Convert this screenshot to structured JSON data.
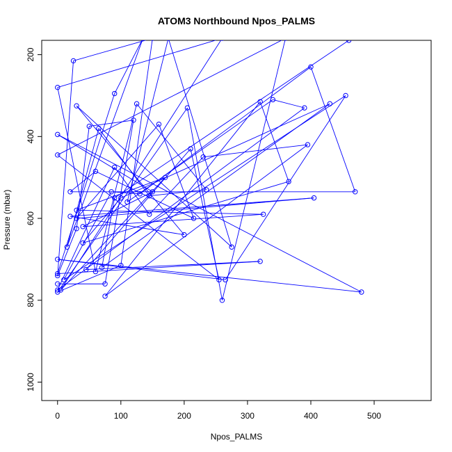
{
  "chart_data": {
    "type": "scatter",
    "title": "ATOM3 Northbound Npos_PALMS",
    "xlabel": "Npos_PALMS",
    "ylabel": "Pressure (mbar)",
    "xlim": [
      -25,
      590
    ],
    "ylim": [
      1045,
      165
    ],
    "y_reversed": true,
    "x_ticks": [
      0,
      100,
      200,
      300,
      400,
      500
    ],
    "y_ticks": [
      200,
      400,
      600,
      800,
      1000
    ],
    "grid": false,
    "legend": "none",
    "series": [
      {
        "color": "#0000ff",
        "marker": "open-circle",
        "connected": true,
        "points": [
          [
            0,
            760
          ],
          [
            75,
            760
          ],
          [
            120,
            360
          ],
          [
            50,
            375
          ],
          [
            30,
            625
          ],
          [
            0,
            740
          ],
          [
            25,
            215
          ],
          [
            150,
            160
          ],
          [
            100,
            715
          ],
          [
            0,
            780
          ],
          [
            205,
            330
          ],
          [
            260,
            800
          ],
          [
            360,
            160
          ],
          [
            0,
            445
          ],
          [
            255,
            750
          ],
          [
            210,
            430
          ],
          [
            45,
            725
          ],
          [
            320,
            705
          ],
          [
            0,
            735
          ],
          [
            90,
            295
          ],
          [
            135,
            160
          ],
          [
            15,
            670
          ],
          [
            65,
            380
          ],
          [
            145,
            545
          ],
          [
            235,
            530
          ],
          [
            125,
            320
          ],
          [
            60,
            730
          ],
          [
            0,
            280
          ],
          [
            260,
            160
          ],
          [
            5,
            775
          ],
          [
            170,
            500
          ],
          [
            30,
            580
          ],
          [
            325,
            590
          ],
          [
            40,
            620
          ],
          [
            150,
            535
          ],
          [
            0,
            395
          ],
          [
            480,
            780
          ],
          [
            0,
            700
          ],
          [
            265,
            750
          ],
          [
            455,
            300
          ],
          [
            10,
            750
          ],
          [
            85,
            535
          ],
          [
            130,
            540
          ],
          [
            400,
            230
          ],
          [
            470,
            535
          ],
          [
            20,
            535
          ],
          [
            60,
            485
          ],
          [
            215,
            600
          ],
          [
            160,
            370
          ],
          [
            30,
            600
          ],
          [
            405,
            550
          ],
          [
            20,
            595
          ],
          [
            200,
            640
          ],
          [
            30,
            325
          ],
          [
            275,
            670
          ],
          [
            175,
            160
          ],
          [
            110,
            560
          ],
          [
            340,
            310
          ],
          [
            390,
            330
          ],
          [
            0,
            775
          ],
          [
            90,
            475
          ],
          [
            145,
            590
          ],
          [
            230,
            450
          ],
          [
            395,
            420
          ],
          [
            75,
            790
          ],
          [
            320,
            315
          ],
          [
            365,
            510
          ],
          [
            40,
            660
          ],
          [
            100,
            550
          ],
          [
            430,
            320
          ],
          [
            70,
            720
          ],
          [
            90,
            550
          ],
          [
            460,
            165
          ]
        ]
      }
    ]
  }
}
